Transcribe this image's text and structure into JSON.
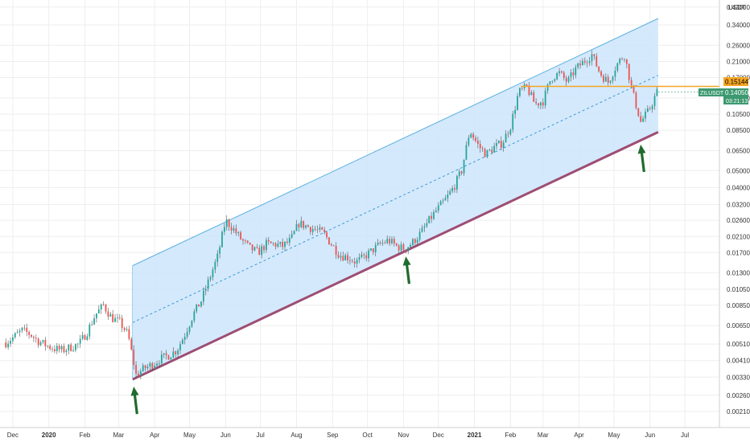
{
  "chart_data": {
    "type": "candlestick",
    "symbol": "ZILUSDT",
    "currency_label": "USDT",
    "price_scale": "log",
    "grid": true,
    "y_ticks": [
      "0.43000",
      "0.34000",
      "0.26000",
      "0.21000",
      "0.17000",
      "0.13000",
      "0.10500",
      "0.08500",
      "0.06500",
      "0.05000",
      "0.04000",
      "0.03200",
      "0.02600",
      "0.02100",
      "0.01700",
      "0.01300",
      "0.01050",
      "0.00850",
      "0.00650",
      "0.00510",
      "0.00410",
      "0.00330",
      "0.00260",
      "0.00210"
    ],
    "x_ticks": [
      "Dec",
      "2020",
      "Feb",
      "Mar",
      "Apr",
      "May",
      "Jun",
      "Jul",
      "Aug",
      "Sep",
      "Oct",
      "Nov",
      "Dec",
      "2021",
      "Feb",
      "Mar",
      "Apr",
      "May",
      "Jun",
      "Jul"
    ],
    "last_price_label": "0.14050",
    "countdown_label": "03:21:13",
    "resistance_price_label": "0.15144",
    "resistance_level": 0.15144,
    "last_price": 0.1405,
    "channel": {
      "start": {
        "date": "2020-03-13",
        "upper": 0.0143,
        "lower": 0.0032
      },
      "end": {
        "date": "2021-06-08",
        "upper": 0.37,
        "lower": 0.083
      }
    },
    "arrows": [
      {
        "date": "2020-03-14",
        "price": 0.0031
      },
      {
        "date": "2020-11-03",
        "price": 0.0172
      },
      {
        "date": "2021-05-24",
        "price": 0.075
      }
    ],
    "colors": {
      "up": "#26a69a",
      "down": "#ef5350",
      "wick": "#555555",
      "channel_fill": "#cce5fb",
      "channel_top": "#5ab0e0",
      "channel_mid": "#3d9bd6",
      "channel_bottom": "#9e4d73",
      "resistance": "#f5a623",
      "price_tag": "#3d9970",
      "arrow": "#1f6b2e",
      "grid": "#eeeeee",
      "axis_text": "#333333"
    },
    "weekly_closes": [
      [
        "2019-11-25",
        0.0052
      ],
      [
        "2019-12-02",
        0.0056
      ],
      [
        "2019-12-09",
        0.0061
      ],
      [
        "2019-12-16",
        0.0058
      ],
      [
        "2019-12-23",
        0.0053
      ],
      [
        "2019-12-30",
        0.005
      ],
      [
        "2020-01-06",
        0.0048
      ],
      [
        "2020-01-13",
        0.0047
      ],
      [
        "2020-01-20",
        0.0049
      ],
      [
        "2020-01-27",
        0.0051
      ],
      [
        "2020-02-03",
        0.006
      ],
      [
        "2020-02-10",
        0.0075
      ],
      [
        "2020-02-17",
        0.0085
      ],
      [
        "2020-02-24",
        0.0072
      ],
      [
        "2020-03-02",
        0.0068
      ],
      [
        "2020-03-09",
        0.0058
      ],
      [
        "2020-03-16",
        0.0034
      ],
      [
        "2020-03-23",
        0.0037
      ],
      [
        "2020-03-30",
        0.0039
      ],
      [
        "2020-04-06",
        0.0042
      ],
      [
        "2020-04-13",
        0.0044
      ],
      [
        "2020-04-20",
        0.0047
      ],
      [
        "2020-04-27",
        0.0058
      ],
      [
        "2020-05-04",
        0.0075
      ],
      [
        "2020-05-11",
        0.009
      ],
      [
        "2020-05-18",
        0.012
      ],
      [
        "2020-05-25",
        0.016
      ],
      [
        "2020-06-01",
        0.026
      ],
      [
        "2020-06-08",
        0.023
      ],
      [
        "2020-06-15",
        0.02
      ],
      [
        "2020-06-22",
        0.018
      ],
      [
        "2020-06-29",
        0.017
      ],
      [
        "2020-07-06",
        0.019
      ],
      [
        "2020-07-13",
        0.019
      ],
      [
        "2020-07-20",
        0.0185
      ],
      [
        "2020-07-27",
        0.02
      ],
      [
        "2020-08-03",
        0.025
      ],
      [
        "2020-08-10",
        0.024
      ],
      [
        "2020-08-17",
        0.023
      ],
      [
        "2020-08-24",
        0.022
      ],
      [
        "2020-08-31",
        0.019
      ],
      [
        "2020-09-07",
        0.0165
      ],
      [
        "2020-09-14",
        0.016
      ],
      [
        "2020-09-21",
        0.015
      ],
      [
        "2020-09-28",
        0.016
      ],
      [
        "2020-10-05",
        0.0175
      ],
      [
        "2020-10-12",
        0.019
      ],
      [
        "2020-10-19",
        0.02
      ],
      [
        "2020-10-26",
        0.0185
      ],
      [
        "2020-11-02",
        0.0178
      ],
      [
        "2020-11-09",
        0.0195
      ],
      [
        "2020-11-16",
        0.022
      ],
      [
        "2020-11-23",
        0.026
      ],
      [
        "2020-11-30",
        0.03
      ],
      [
        "2020-12-07",
        0.034
      ],
      [
        "2020-12-14",
        0.04
      ],
      [
        "2020-12-21",
        0.05
      ],
      [
        "2020-12-28",
        0.085
      ],
      [
        "2021-01-04",
        0.07
      ],
      [
        "2021-01-11",
        0.062
      ],
      [
        "2021-01-18",
        0.068
      ],
      [
        "2021-01-25",
        0.072
      ],
      [
        "2021-02-01",
        0.09
      ],
      [
        "2021-02-08",
        0.14
      ],
      [
        "2021-02-15",
        0.15
      ],
      [
        "2021-02-22",
        0.12
      ],
      [
        "2021-03-01",
        0.125
      ],
      [
        "2021-03-08",
        0.17
      ],
      [
        "2021-03-15",
        0.18
      ],
      [
        "2021-03-22",
        0.16
      ],
      [
        "2021-03-29",
        0.19
      ],
      [
        "2021-04-05",
        0.21
      ],
      [
        "2021-04-12",
        0.23
      ],
      [
        "2021-04-19",
        0.18
      ],
      [
        "2021-04-26",
        0.16
      ],
      [
        "2021-05-03",
        0.2
      ],
      [
        "2021-05-10",
        0.23
      ],
      [
        "2021-05-17",
        0.14
      ],
      [
        "2021-05-24",
        0.095
      ],
      [
        "2021-05-31",
        0.11
      ],
      [
        "2021-06-07",
        0.1405
      ]
    ]
  }
}
